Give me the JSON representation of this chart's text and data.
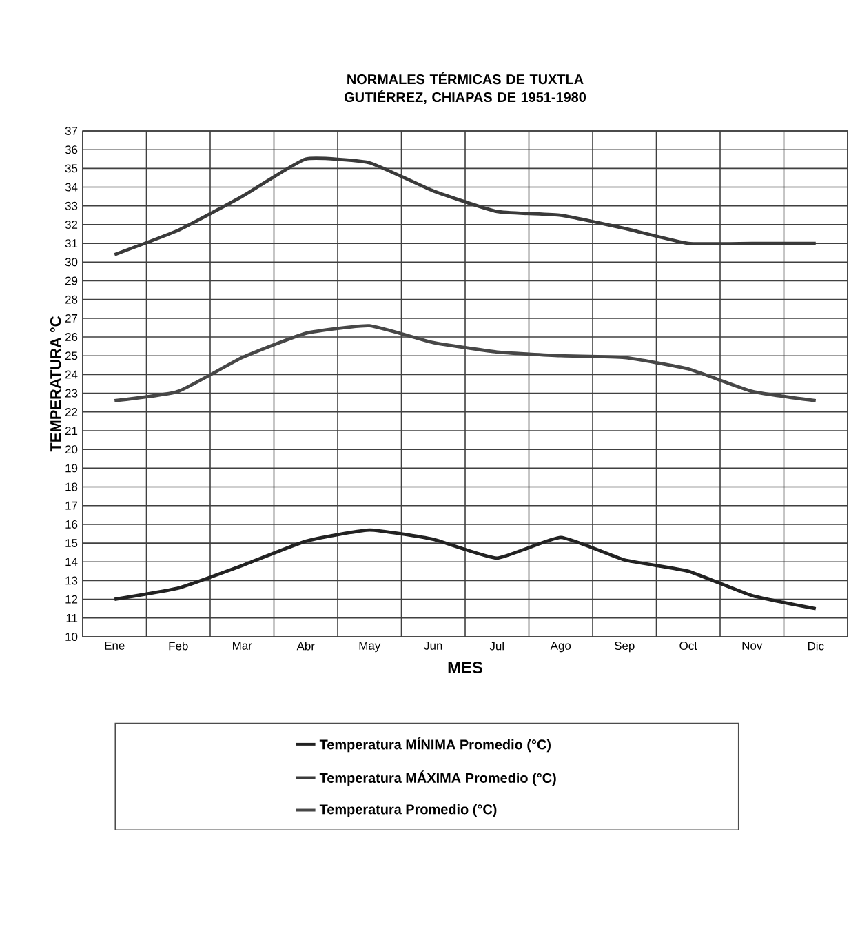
{
  "chart_data": {
    "type": "line",
    "title": "NORMALES TÉRMICAS DE TUXTLA GUTIÉRREZ, CHIAPAS DE 1951-1980",
    "xlabel": "MES",
    "ylabel": "TEMPERATURA °C",
    "categories": [
      "Ene",
      "Feb",
      "Mar",
      "Abr",
      "May",
      "Jun",
      "Jul",
      "Ago",
      "Sep",
      "Oct",
      "Nov",
      "Dic"
    ],
    "series": [
      {
        "name": "Temperatura MÍNIMA Promedio (°C)",
        "color": "#222222",
        "values": [
          12.0,
          12.6,
          13.8,
          15.1,
          15.7,
          15.2,
          14.2,
          15.3,
          14.1,
          13.5,
          12.2,
          11.5
        ]
      },
      {
        "name": "Temperatura MÁXIMA Promedio (°C)",
        "color": "#3a3a3a",
        "values": [
          30.4,
          31.7,
          33.5,
          35.5,
          35.3,
          33.8,
          32.7,
          32.5,
          31.8,
          31.0,
          31.0,
          31.0
        ]
      },
      {
        "name": "Temperatura Promedio (°C)",
        "color": "#474747",
        "values": [
          22.6,
          23.1,
          24.9,
          26.2,
          26.6,
          25.7,
          25.2,
          25.0,
          24.9,
          24.3,
          23.1,
          22.6
        ]
      }
    ],
    "ylim": [
      10,
      37
    ],
    "yticks": [
      10,
      11,
      12,
      13,
      14,
      15,
      16,
      17,
      18,
      19,
      20,
      21,
      22,
      23,
      24,
      25,
      26,
      27,
      28,
      29,
      30,
      31,
      32,
      33,
      34,
      35,
      36,
      37
    ],
    "grid": true,
    "legend": "bottom",
    "marker": "none",
    "line_style": "solid"
  }
}
